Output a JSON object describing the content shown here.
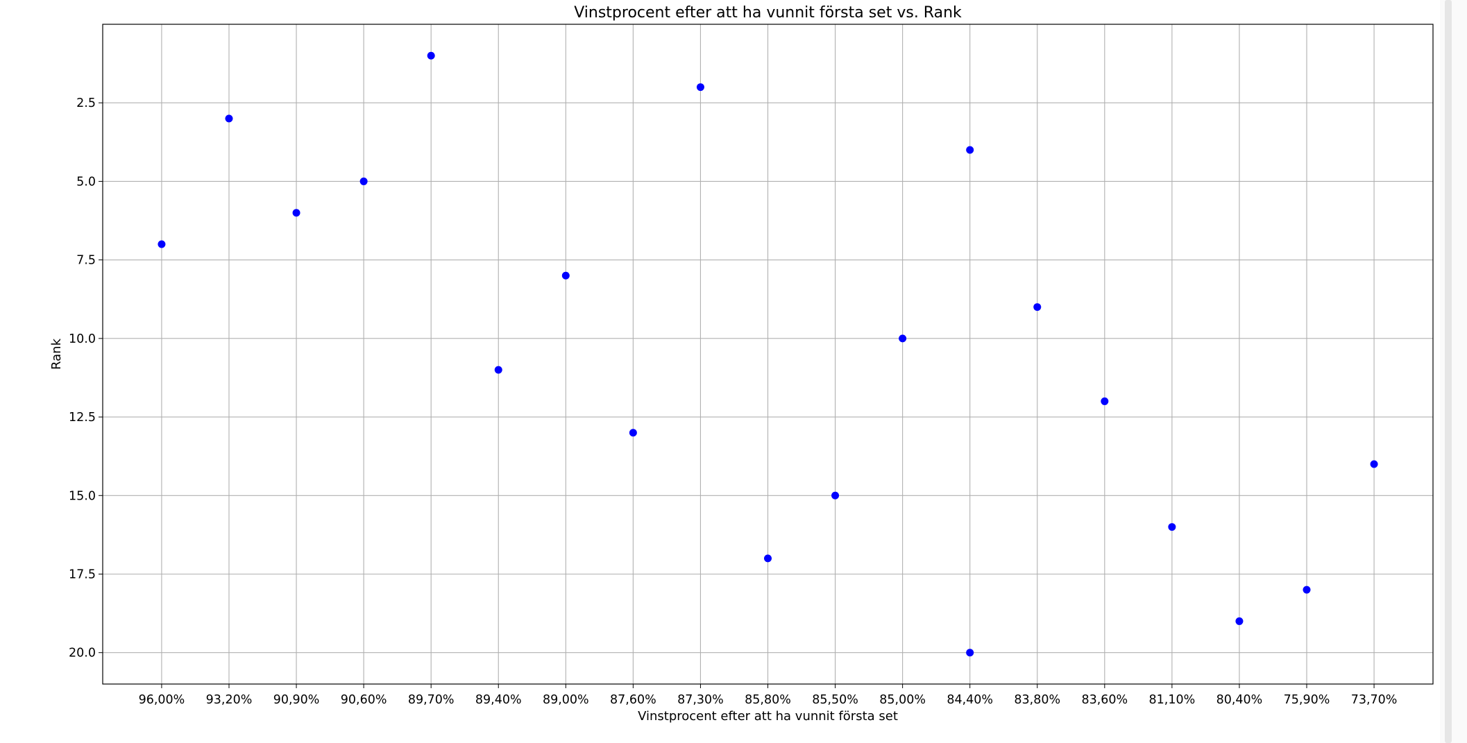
{
  "chart_data": {
    "type": "scatter",
    "title": "Vinstprocent efter att ha vunnit första set vs. Rank",
    "xlabel": "Vinstprocent efter att ha vunnit första set",
    "ylabel": "Rank",
    "x_categories": [
      "96,00%",
      "93,20%",
      "90,90%",
      "90,60%",
      "89,70%",
      "89,40%",
      "89,00%",
      "87,60%",
      "87,30%",
      "85,80%",
      "85,50%",
      "85,00%",
      "84,40%",
      "83,80%",
      "83,60%",
      "81,10%",
      "80,40%",
      "75,90%",
      "73,70%"
    ],
    "y_ticks": [
      "2.5",
      "5.0",
      "7.5",
      "10.0",
      "12.5",
      "15.0",
      "17.5",
      "20.0"
    ],
    "ylim": [
      21,
      0
    ],
    "y_inverted": true,
    "grid": true,
    "point_color": "#0000ff",
    "points": [
      {
        "x": "96,00%",
        "y": 7
      },
      {
        "x": "93,20%",
        "y": 3
      },
      {
        "x": "90,90%",
        "y": 6
      },
      {
        "x": "90,60%",
        "y": 5
      },
      {
        "x": "89,70%",
        "y": 1
      },
      {
        "x": "89,40%",
        "y": 11
      },
      {
        "x": "89,00%",
        "y": 8
      },
      {
        "x": "87,60%",
        "y": 13
      },
      {
        "x": "87,30%",
        "y": 2
      },
      {
        "x": "85,80%",
        "y": 17
      },
      {
        "x": "85,50%",
        "y": 15
      },
      {
        "x": "85,00%",
        "y": 10
      },
      {
        "x": "84,40%",
        "y": 4
      },
      {
        "x": "84,40%",
        "y": 20
      },
      {
        "x": "83,80%",
        "y": 9
      },
      {
        "x": "83,60%",
        "y": 12
      },
      {
        "x": "81,10%",
        "y": 16
      },
      {
        "x": "80,40%",
        "y": 19
      },
      {
        "x": "75,90%",
        "y": 18
      },
      {
        "x": "73,70%",
        "y": 14
      }
    ]
  }
}
